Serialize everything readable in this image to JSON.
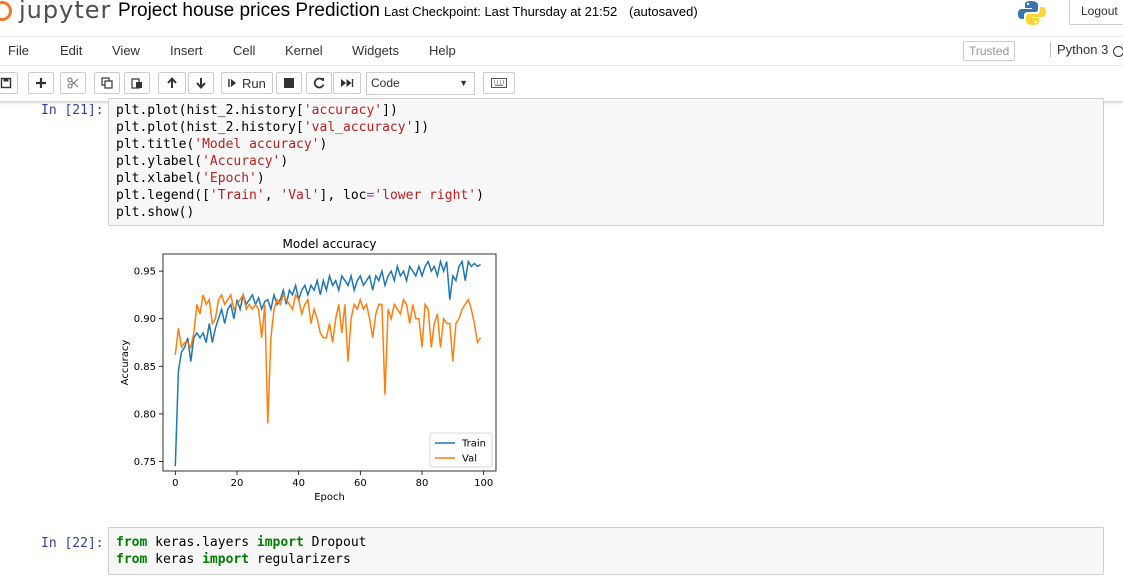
{
  "header": {
    "logo_text": "jupyter",
    "notebook_name": "Project house prices Prediction",
    "checkpoint": "Last Checkpoint: Last Thursday at 21:52",
    "autosave": "(autosaved)",
    "logout_label": "Logout",
    "accent_color": "#f37726"
  },
  "menubar": {
    "items": [
      "File",
      "Edit",
      "View",
      "Insert",
      "Cell",
      "Kernel",
      "Widgets",
      "Help"
    ],
    "trusted_label": "Trusted",
    "kernel_name": "Python 3"
  },
  "toolbar": {
    "run_label": "Run",
    "cell_type": "Code",
    "icons": [
      "save-icon",
      "plus-icon",
      "scissors-icon",
      "copy-icon",
      "paste-icon",
      "arrow-up-icon",
      "arrow-down-icon",
      "run-icon",
      "stop-icon",
      "restart-icon",
      "fast-forward-icon",
      "keyboard-icon"
    ]
  },
  "cells": [
    {
      "prompt": "In [21]:",
      "lines": [
        "plt.plot(hist_2.history['accuracy'])",
        "plt.plot(hist_2.history['val_accuracy'])",
        "plt.title('Model accuracy')",
        "plt.ylabel('Accuracy')",
        "plt.xlabel('Epoch')",
        "plt.legend(['Train', 'Val'], loc='lower right')",
        "plt.show()"
      ]
    },
    {
      "prompt": "In [22]:",
      "lines": [
        "from keras.layers import Dropout",
        "from keras import regularizers"
      ]
    }
  ],
  "chart_data": {
    "type": "line",
    "title": "Model accuracy",
    "xlabel": "Epoch",
    "ylabel": "Accuracy",
    "xlim": [
      -4,
      104
    ],
    "ylim": [
      0.74,
      0.968
    ],
    "xticks": [
      0,
      20,
      40,
      60,
      80,
      100
    ],
    "yticks": [
      0.75,
      0.8,
      0.85,
      0.9,
      0.95
    ],
    "ytick_labels": [
      "0.75",
      "0.80",
      "0.85",
      "0.90",
      "0.95"
    ],
    "grid": false,
    "legend_position": "lower right",
    "x": [
      0,
      1,
      2,
      3,
      4,
      5,
      6,
      7,
      8,
      9,
      10,
      11,
      12,
      13,
      14,
      15,
      16,
      17,
      18,
      19,
      20,
      21,
      22,
      23,
      24,
      25,
      26,
      27,
      28,
      29,
      30,
      31,
      32,
      33,
      34,
      35,
      36,
      37,
      38,
      39,
      40,
      41,
      42,
      43,
      44,
      45,
      46,
      47,
      48,
      49,
      50,
      51,
      52,
      53,
      54,
      55,
      56,
      57,
      58,
      59,
      60,
      61,
      62,
      63,
      64,
      65,
      66,
      67,
      68,
      69,
      70,
      71,
      72,
      73,
      74,
      75,
      76,
      77,
      78,
      79,
      80,
      81,
      82,
      83,
      84,
      85,
      86,
      87,
      88,
      89,
      90,
      91,
      92,
      93,
      94,
      95,
      96,
      97,
      98,
      99
    ],
    "series": [
      {
        "name": "Train",
        "color": "#1f77b4",
        "values": [
          0.745,
          0.845,
          0.865,
          0.87,
          0.88,
          0.855,
          0.88,
          0.885,
          0.88,
          0.885,
          0.875,
          0.895,
          0.875,
          0.89,
          0.9,
          0.91,
          0.895,
          0.91,
          0.915,
          0.9,
          0.92,
          0.91,
          0.925,
          0.915,
          0.92,
          0.925,
          0.915,
          0.922,
          0.91,
          0.918,
          0.92,
          0.91,
          0.925,
          0.915,
          0.92,
          0.93,
          0.915,
          0.93,
          0.925,
          0.935,
          0.92,
          0.93,
          0.935,
          0.925,
          0.935,
          0.93,
          0.94,
          0.925,
          0.94,
          0.93,
          0.945,
          0.935,
          0.94,
          0.93,
          0.945,
          0.94,
          0.935,
          0.945,
          0.93,
          0.94,
          0.945,
          0.935,
          0.94,
          0.945,
          0.93,
          0.945,
          0.94,
          0.95,
          0.935,
          0.945,
          0.95,
          0.94,
          0.955,
          0.945,
          0.95,
          0.94,
          0.955,
          0.95,
          0.945,
          0.955,
          0.945,
          0.955,
          0.96,
          0.95,
          0.955,
          0.945,
          0.96,
          0.95,
          0.96,
          0.92,
          0.945,
          0.94,
          0.955,
          0.96,
          0.94,
          0.96,
          0.955,
          0.958,
          0.955,
          0.957
        ]
      },
      {
        "name": "Val",
        "color": "#ff7f0e",
        "values": [
          0.862,
          0.89,
          0.87,
          0.875,
          0.875,
          0.87,
          0.885,
          0.915,
          0.905,
          0.925,
          0.915,
          0.92,
          0.895,
          0.9,
          0.92,
          0.925,
          0.915,
          0.92,
          0.925,
          0.91,
          0.915,
          0.92,
          0.925,
          0.91,
          0.915,
          0.91,
          0.915,
          0.91,
          0.88,
          0.915,
          0.79,
          0.88,
          0.91,
          0.92,
          0.915,
          0.925,
          0.92,
          0.915,
          0.91,
          0.925,
          0.92,
          0.905,
          0.915,
          0.92,
          0.895,
          0.91,
          0.9,
          0.885,
          0.88,
          0.88,
          0.895,
          0.875,
          0.9,
          0.915,
          0.885,
          0.915,
          0.855,
          0.9,
          0.915,
          0.91,
          0.92,
          0.91,
          0.915,
          0.9,
          0.88,
          0.905,
          0.915,
          0.915,
          0.82,
          0.91,
          0.9,
          0.915,
          0.91,
          0.905,
          0.92,
          0.915,
          0.895,
          0.915,
          0.9,
          0.9,
          0.87,
          0.915,
          0.91,
          0.87,
          0.895,
          0.905,
          0.87,
          0.9,
          0.895,
          0.895,
          0.855,
          0.895,
          0.9,
          0.91,
          0.915,
          0.92,
          0.91,
          0.895,
          0.875,
          0.88
        ]
      }
    ]
  }
}
